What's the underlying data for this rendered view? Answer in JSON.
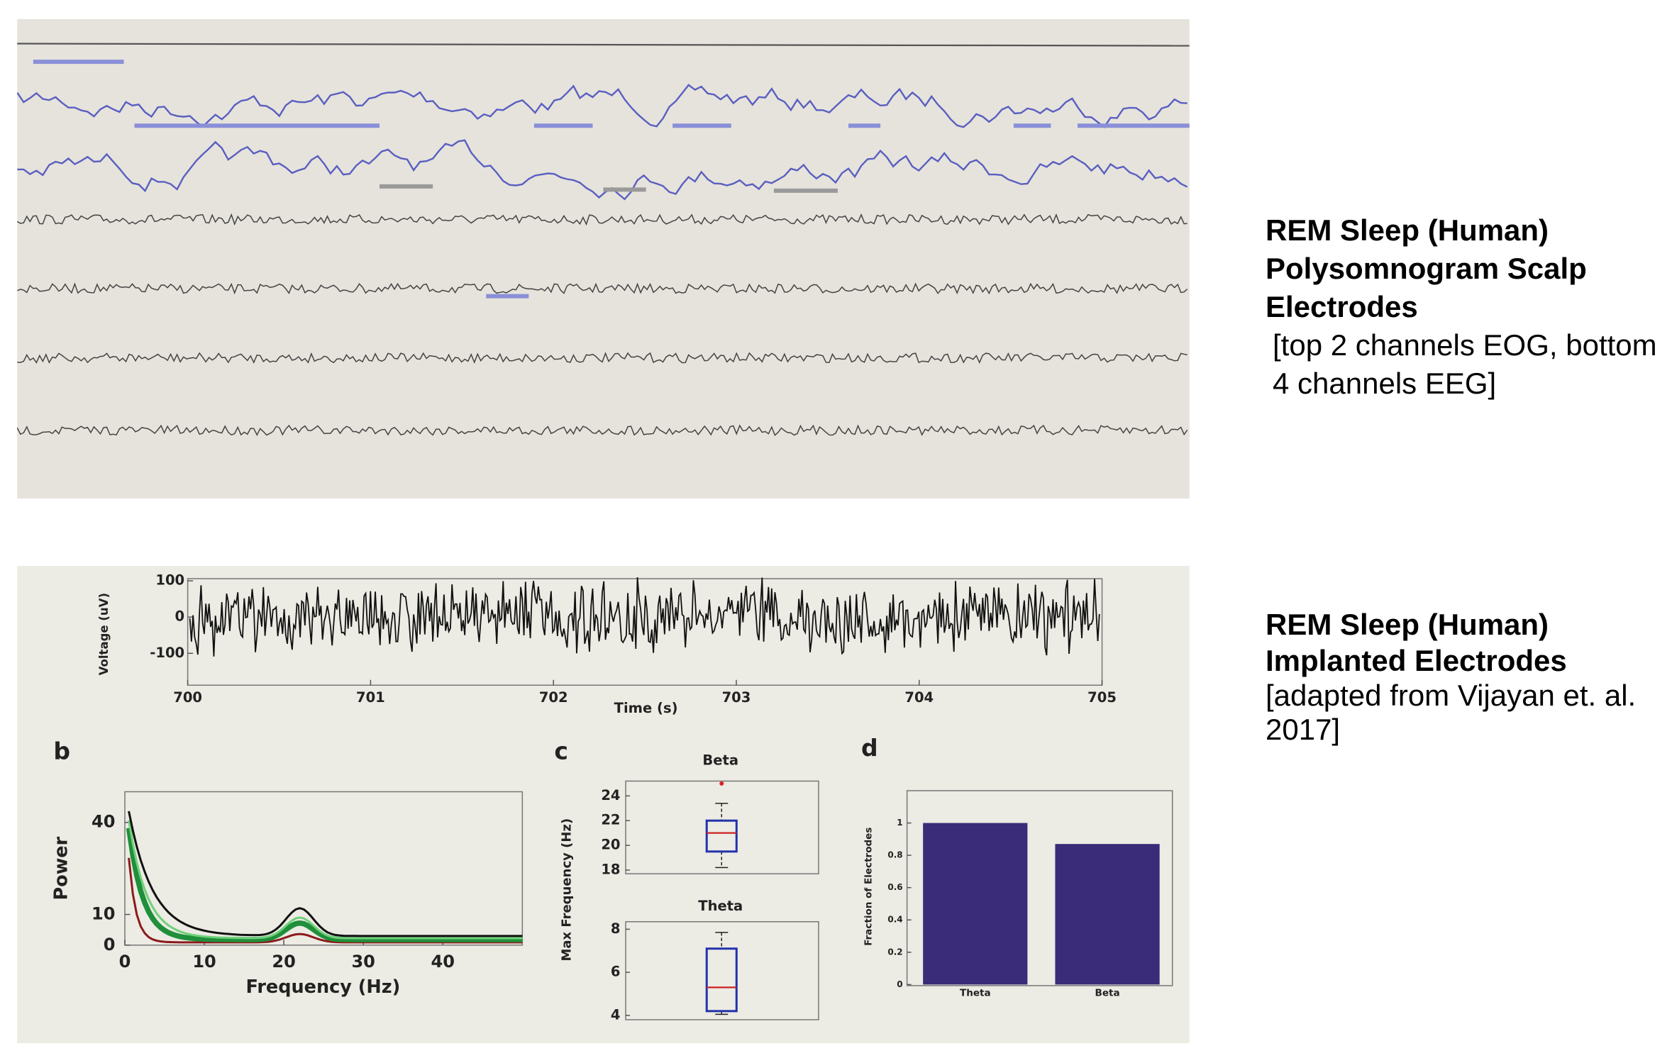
{
  "slide": {
    "sections": [
      {
        "title": "REM Sleep (Human) Polysomnogram Scalp Electrodes",
        "note": "[top 2 channels EOG, bottom 4 channels EEG]"
      },
      {
        "title": "REM Sleep (Human) Implanted Electrodes",
        "note": "[adapted from Vijayan et. al. 2017]"
      }
    ]
  },
  "figure": {
    "a": {
      "xlim": [
        700,
        705
      ],
      "xticks": [
        700,
        701,
        702,
        703,
        704,
        705
      ],
      "ylim": [
        -188,
        106
      ],
      "yticks": [
        100,
        0,
        -100
      ],
      "xlabel": "Time (s)",
      "ylabel": "Voltage (uV)"
    },
    "b": {
      "label": "b",
      "xlim": [
        0,
        50
      ],
      "xticks": [
        0,
        10,
        20,
        30,
        40
      ],
      "ylim": [
        0,
        50
      ],
      "yticks": [
        0,
        10,
        40
      ],
      "xlabel": "Frequency (Hz)",
      "ylabel": "Power"
    },
    "c": {
      "label": "c",
      "ylabel": "Max Frequency (Hz)",
      "boxes": [
        {
          "name": "Beta",
          "ylim": [
            17.7,
            25.2
          ],
          "yticks": [
            18,
            20,
            22,
            24
          ],
          "whisker_low": 18.2,
          "q1": 19.5,
          "median": 21,
          "q3": 22,
          "whisker_high": 23.4,
          "outliers": [
            25
          ]
        },
        {
          "name": "Theta",
          "ylim": [
            3.8,
            8.35
          ],
          "yticks": [
            4,
            6,
            8
          ],
          "whisker_low": 4.05,
          "q1": 4.2,
          "median": 5.3,
          "q3": 7.1,
          "whisker_high": 7.85,
          "outliers": []
        }
      ]
    },
    "d": {
      "label": "d",
      "ylabel": "Fraction of Electrodes",
      "ylim": [
        0,
        1.2
      ],
      "yticks": [
        0,
        0.2,
        0.4,
        0.6,
        0.8,
        1
      ],
      "categories": [
        "Theta",
        "Beta"
      ],
      "values": [
        1.0,
        0.87
      ],
      "color": "#3a2c78"
    }
  }
}
